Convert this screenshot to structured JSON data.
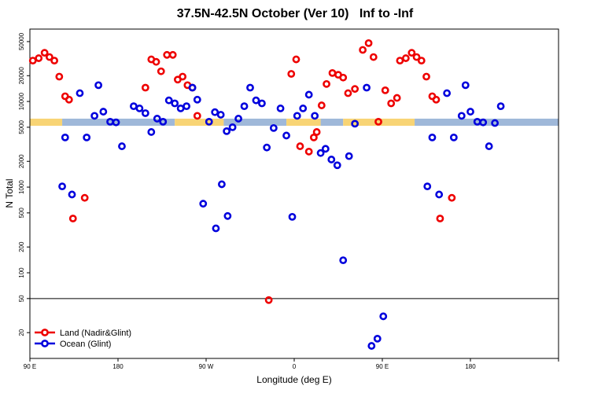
{
  "chart_data": {
    "type": "scatter",
    "title": "37.5N-42.5N October (Ver 10)   Inf to -Inf",
    "xlabel": "Longitude (deg E)",
    "ylabel": "N Total",
    "y_scale": "log",
    "ylim": [
      10,
      70000
    ],
    "xlim": [
      0,
      540
    ],
    "x_tick_labels": [
      "90 E",
      "180",
      "90 W",
      "0",
      "90 E",
      "180"
    ],
    "x_tick_values": [
      0,
      90,
      180,
      270,
      360,
      450
    ],
    "y_tick_values": [
      20,
      50,
      100,
      200,
      500,
      1000,
      2000,
      5000,
      10000,
      20000,
      50000
    ],
    "y_tick_labels": [
      "20",
      "50",
      "100",
      "200",
      "500",
      "1000",
      "2000",
      "5000",
      "10000",
      "20000",
      "50000"
    ],
    "reference_line_y": 50,
    "band": {
      "ymin": 5200,
      "ymax": 6300,
      "segments": [
        {
          "xmin": 0,
          "xmax": 33,
          "surface": "land"
        },
        {
          "xmin": 33,
          "xmax": 148,
          "surface": "ocean"
        },
        {
          "xmin": 148,
          "xmax": 198,
          "surface": "land"
        },
        {
          "xmin": 198,
          "xmax": 262,
          "surface": "ocean"
        },
        {
          "xmin": 262,
          "xmax": 297,
          "surface": "land"
        },
        {
          "xmin": 297,
          "xmax": 320,
          "surface": "ocean"
        },
        {
          "xmin": 320,
          "xmax": 393,
          "surface": "land"
        },
        {
          "xmin": 393,
          "xmax": 540,
          "surface": "ocean"
        }
      ]
    },
    "series": [
      {
        "name": "Land (Nadir&Glint)",
        "color": "#ee0000",
        "points": [
          [
            3,
            30000
          ],
          [
            9,
            32000
          ],
          [
            15,
            37000
          ],
          [
            20,
            33000
          ],
          [
            25,
            30000
          ],
          [
            30,
            19500
          ],
          [
            36,
            11500
          ],
          [
            40,
            10500
          ],
          [
            44,
            430
          ],
          [
            56,
            750
          ],
          [
            118,
            14500
          ],
          [
            124,
            31000
          ],
          [
            129,
            29000
          ],
          [
            134,
            22500
          ],
          [
            140,
            35000
          ],
          [
            146,
            35000
          ],
          [
            151,
            18000
          ],
          [
            156,
            19500
          ],
          [
            161,
            15500
          ],
          [
            166,
            14500
          ],
          [
            171,
            6800
          ],
          [
            244,
            48
          ],
          [
            267,
            21000
          ],
          [
            272,
            31000
          ],
          [
            276,
            3000
          ],
          [
            285,
            2600
          ],
          [
            290,
            3800
          ],
          [
            293,
            4400
          ],
          [
            298,
            9000
          ],
          [
            303,
            16000
          ],
          [
            309,
            21500
          ],
          [
            315,
            20500
          ],
          [
            320,
            19000
          ],
          [
            325,
            12500
          ],
          [
            332,
            14000
          ],
          [
            340,
            40000
          ],
          [
            346,
            48000
          ],
          [
            351,
            33000
          ],
          [
            356,
            5800
          ],
          [
            363,
            13500
          ],
          [
            369,
            9500
          ],
          [
            375,
            11000
          ],
          [
            378,
            30000
          ],
          [
            384,
            32000
          ],
          [
            390,
            37000
          ],
          [
            395,
            33000
          ],
          [
            400,
            30000
          ],
          [
            405,
            19500
          ],
          [
            411,
            11500
          ],
          [
            415,
            10500
          ],
          [
            419,
            430
          ],
          [
            431,
            750
          ]
        ]
      },
      {
        "name": "Ocean (Glint)",
        "color": "#0000dd",
        "points": [
          [
            36,
            3800
          ],
          [
            33,
            1020
          ],
          [
            43,
            820
          ],
          [
            51,
            12500
          ],
          [
            58,
            3800
          ],
          [
            66,
            6800
          ],
          [
            70,
            15500
          ],
          [
            75,
            7600
          ],
          [
            82,
            5800
          ],
          [
            88,
            5700
          ],
          [
            94,
            3000
          ],
          [
            106,
            8800
          ],
          [
            112,
            8300
          ],
          [
            118,
            7300
          ],
          [
            124,
            4400
          ],
          [
            130,
            6300
          ],
          [
            136,
            5800
          ],
          [
            142,
            10300
          ],
          [
            148,
            9500
          ],
          [
            154,
            8300
          ],
          [
            160,
            8800
          ],
          [
            166,
            14500
          ],
          [
            171,
            10500
          ],
          [
            177,
            640
          ],
          [
            183,
            5800
          ],
          [
            189,
            7500
          ],
          [
            195,
            7000
          ],
          [
            201,
            4500
          ],
          [
            207,
            5000
          ],
          [
            213,
            6300
          ],
          [
            219,
            8800
          ],
          [
            225,
            14500
          ],
          [
            231,
            10300
          ],
          [
            237,
            9500
          ],
          [
            242,
            2900
          ],
          [
            249,
            4900
          ],
          [
            256,
            8300
          ],
          [
            262,
            4000
          ],
          [
            268,
            450
          ],
          [
            273,
            6800
          ],
          [
            279,
            8300
          ],
          [
            285,
            12000
          ],
          [
            291,
            6800
          ],
          [
            297,
            2500
          ],
          [
            302,
            2800
          ],
          [
            308,
            2100
          ],
          [
            314,
            1800
          ],
          [
            320,
            140
          ],
          [
            326,
            2300
          ],
          [
            332,
            5500
          ],
          [
            344,
            14500
          ],
          [
            190,
            330
          ],
          [
            196,
            1080
          ],
          [
            202,
            460
          ],
          [
            349,
            14
          ],
          [
            355,
            17
          ],
          [
            361,
            31
          ],
          [
            406,
            1020
          ],
          [
            411,
            3800
          ],
          [
            418,
            820
          ],
          [
            426,
            12500
          ],
          [
            433,
            3800
          ],
          [
            441,
            6800
          ],
          [
            445,
            15500
          ],
          [
            450,
            7600
          ],
          [
            457,
            5800
          ],
          [
            463,
            5700
          ],
          [
            469,
            3000
          ],
          [
            475,
            5600
          ],
          [
            481,
            8800
          ]
        ]
      }
    ],
    "legend": {
      "placement": "bottom-left",
      "entries": [
        "Land (Nadir&Glint)",
        "Ocean (Glint)"
      ]
    }
  }
}
